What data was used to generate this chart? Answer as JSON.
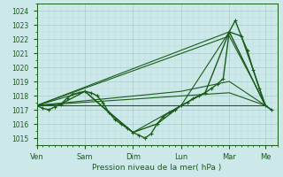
{
  "xlabel": "Pression niveau de la mer( hPa )",
  "bg_color": "#cce8e8",
  "grid_major_color": "#aacccc",
  "grid_minor_color": "#bbdddd",
  "line_color": "#1a5c1a",
  "ylim": [
    1014.5,
    1024.5
  ],
  "xlim": [
    0,
    120
  ],
  "day_labels": [
    "Ven",
    "Sam",
    "Dim",
    "Lun",
    "Mar",
    "Me"
  ],
  "day_positions": [
    0,
    24,
    48,
    72,
    96,
    114
  ],
  "yticks": [
    1015,
    1016,
    1017,
    1018,
    1019,
    1020,
    1021,
    1022,
    1023,
    1024
  ],
  "series": [
    {
      "x": [
        0,
        3,
        6,
        9,
        12,
        15,
        18,
        21,
        24,
        27,
        30,
        33,
        36,
        39,
        42,
        45,
        48,
        51,
        54,
        57,
        60,
        63,
        66,
        69,
        72,
        75,
        78,
        81,
        84,
        87,
        90,
        93,
        96,
        99,
        102,
        105,
        108,
        111,
        114,
        117
      ],
      "y": [
        1017.3,
        1017.1,
        1017.0,
        1017.2,
        1017.4,
        1017.8,
        1018.1,
        1018.2,
        1018.3,
        1018.2,
        1018.0,
        1017.5,
        1016.8,
        1016.3,
        1016.0,
        1015.7,
        1015.4,
        1015.2,
        1015.0,
        1015.3,
        1016.0,
        1016.5,
        1016.8,
        1017.0,
        1017.3,
        1017.5,
        1017.8,
        1018.0,
        1018.2,
        1018.5,
        1018.8,
        1019.2,
        1022.5,
        1023.3,
        1022.2,
        1021.2,
        1019.8,
        1018.5,
        1017.3,
        1017.0
      ],
      "marker": true,
      "lw": 1.0
    },
    {
      "x": [
        0,
        12,
        24,
        36,
        48,
        60,
        72,
        84,
        96,
        102,
        108,
        114,
        117
      ],
      "y": [
        1017.3,
        1017.4,
        1018.3,
        1016.8,
        1015.4,
        1016.0,
        1017.3,
        1018.2,
        1022.5,
        1022.2,
        1019.8,
        1017.3,
        1017.0
      ],
      "marker": false,
      "lw": 1.0
    },
    {
      "x": [
        0,
        24,
        48,
        72,
        96,
        114
      ],
      "y": [
        1017.3,
        1018.3,
        1015.4,
        1017.3,
        1022.5,
        1017.3
      ],
      "marker": false,
      "lw": 0.8
    },
    {
      "x": [
        0,
        96,
        114
      ],
      "y": [
        1017.3,
        1022.5,
        1017.3
      ],
      "marker": false,
      "lw": 0.8
    },
    {
      "x": [
        0,
        72,
        96,
        114
      ],
      "y": [
        1017.3,
        1018.3,
        1019.0,
        1017.3
      ],
      "marker": false,
      "lw": 0.8
    },
    {
      "x": [
        0,
        114
      ],
      "y": [
        1017.3,
        1017.3
      ],
      "marker": false,
      "lw": 0.8
    },
    {
      "x": [
        0,
        96,
        114
      ],
      "y": [
        1017.3,
        1018.2,
        1017.3
      ],
      "marker": false,
      "lw": 0.8
    },
    {
      "x": [
        0,
        96,
        108,
        114
      ],
      "y": [
        1017.3,
        1022.2,
        1019.0,
        1017.3
      ],
      "marker": false,
      "lw": 0.8
    }
  ]
}
